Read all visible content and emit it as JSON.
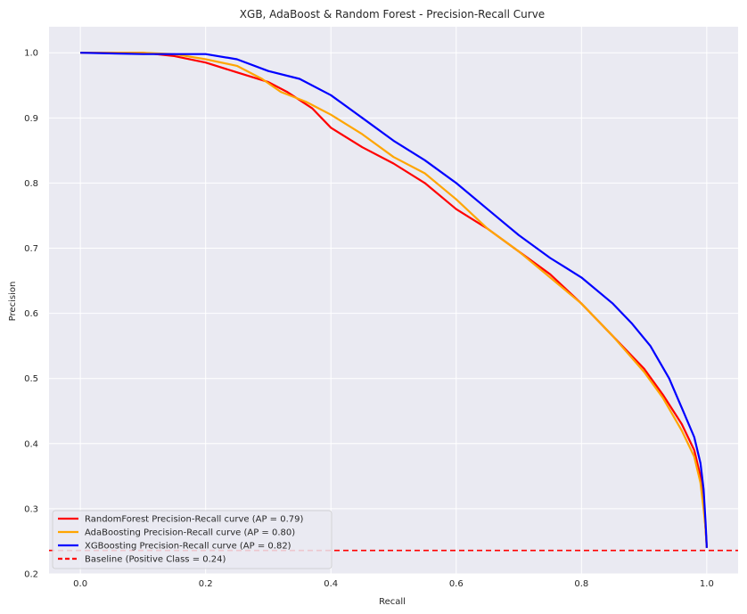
{
  "chart_data": {
    "type": "line",
    "title": "XGB, AdaBoost & Random Forest - Precision-Recall Curve",
    "xlabel": "Recall",
    "ylabel": "Precision",
    "xlim": [
      -0.05,
      1.05
    ],
    "ylim": [
      0.2,
      1.04
    ],
    "xticks": [
      "0.0",
      "0.2",
      "0.4",
      "0.6",
      "0.8",
      "1.0"
    ],
    "yticks": [
      "0.2",
      "0.3",
      "0.4",
      "0.5",
      "0.6",
      "0.7",
      "0.8",
      "0.9",
      "1.0"
    ],
    "grid": true,
    "legend_position": "lower-left",
    "series": [
      {
        "name": "RandomForest Precision-Recall curve (AP = 0.79)",
        "color": "#ff0000",
        "x": [
          0.0,
          0.1,
          0.15,
          0.2,
          0.25,
          0.3,
          0.33,
          0.37,
          0.4,
          0.45,
          0.5,
          0.55,
          0.6,
          0.65,
          0.7,
          0.75,
          0.8,
          0.85,
          0.9,
          0.93,
          0.96,
          0.98,
          0.99,
          0.995,
          0.998,
          1.0
        ],
        "y": [
          1.0,
          1.0,
          0.995,
          0.985,
          0.97,
          0.955,
          0.94,
          0.915,
          0.885,
          0.855,
          0.83,
          0.8,
          0.76,
          0.73,
          0.695,
          0.66,
          0.615,
          0.565,
          0.515,
          0.475,
          0.43,
          0.39,
          0.35,
          0.31,
          0.27,
          0.24
        ]
      },
      {
        "name": "AdaBoosting Precision-Recall curve (AP = 0.80)",
        "color": "#ffa500",
        "x": [
          0.0,
          0.1,
          0.15,
          0.2,
          0.25,
          0.29,
          0.32,
          0.36,
          0.4,
          0.45,
          0.5,
          0.55,
          0.6,
          0.65,
          0.7,
          0.75,
          0.8,
          0.85,
          0.9,
          0.93,
          0.96,
          0.98,
          0.99,
          0.995,
          0.998,
          1.0
        ],
        "y": [
          1.0,
          1.0,
          0.998,
          0.99,
          0.98,
          0.96,
          0.94,
          0.925,
          0.905,
          0.875,
          0.84,
          0.815,
          0.775,
          0.73,
          0.695,
          0.655,
          0.615,
          0.565,
          0.51,
          0.47,
          0.42,
          0.38,
          0.34,
          0.3,
          0.27,
          0.24
        ]
      },
      {
        "name": "XGBoosting Precision-Recall curve (AP = 0.82)",
        "color": "#0000ff",
        "x": [
          0.0,
          0.1,
          0.2,
          0.25,
          0.3,
          0.35,
          0.4,
          0.45,
          0.5,
          0.55,
          0.6,
          0.65,
          0.7,
          0.75,
          0.8,
          0.85,
          0.88,
          0.91,
          0.94,
          0.96,
          0.98,
          0.99,
          0.995,
          0.998,
          1.0
        ],
        "y": [
          1.0,
          0.998,
          0.998,
          0.99,
          0.972,
          0.96,
          0.935,
          0.9,
          0.865,
          0.835,
          0.8,
          0.76,
          0.72,
          0.685,
          0.655,
          0.615,
          0.585,
          0.55,
          0.5,
          0.455,
          0.41,
          0.37,
          0.33,
          0.28,
          0.24
        ]
      }
    ],
    "baseline": {
      "name": "Baseline (Positive Class = 0.24)",
      "color": "#ff0000",
      "y": 0.236
    }
  }
}
